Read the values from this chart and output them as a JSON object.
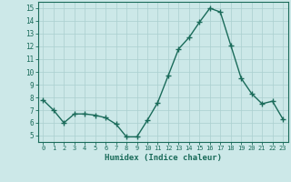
{
  "x": [
    0,
    1,
    2,
    3,
    4,
    5,
    6,
    7,
    8,
    9,
    10,
    11,
    12,
    13,
    14,
    15,
    16,
    17,
    18,
    19,
    20,
    21,
    22,
    23
  ],
  "y": [
    7.8,
    7.0,
    6.0,
    6.7,
    6.7,
    6.6,
    6.4,
    5.9,
    4.9,
    4.9,
    6.2,
    7.6,
    9.7,
    11.8,
    12.7,
    13.9,
    15.0,
    14.7,
    12.1,
    9.5,
    8.3,
    7.5,
    7.7,
    6.3
  ],
  "line_color": "#1a6b5a",
  "marker_color": "#1a6b5a",
  "bg_color": "#cce8e8",
  "grid_color": "#aacfcf",
  "axis_color": "#1a6b5a",
  "xlabel": "Humidex (Indice chaleur)",
  "ylim": [
    4.5,
    15.5
  ],
  "xlim": [
    -0.5,
    23.5
  ],
  "yticks": [
    5,
    6,
    7,
    8,
    9,
    10,
    11,
    12,
    13,
    14,
    15
  ],
  "xticks": [
    0,
    1,
    2,
    3,
    4,
    5,
    6,
    7,
    8,
    9,
    10,
    11,
    12,
    13,
    14,
    15,
    16,
    17,
    18,
    19,
    20,
    21,
    22,
    23
  ],
  "xtick_labels": [
    "0",
    "1",
    "2",
    "3",
    "4",
    "5",
    "6",
    "7",
    "8",
    "9",
    "10",
    "11",
    "12",
    "13",
    "14",
    "15",
    "16",
    "17",
    "18",
    "19",
    "20",
    "21",
    "22",
    "23"
  ],
  "font_color": "#1a6b5a",
  "marker_size": 2.5,
  "line_width": 1.0
}
